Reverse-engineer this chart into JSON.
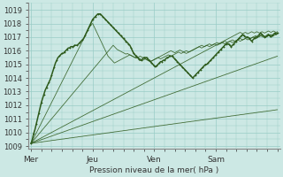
{
  "title": "",
  "xlabel": "Pression niveau de la mer( hPa )",
  "ylabel": "",
  "bg_color": "#cce8e4",
  "plot_bg_color": "#cce8e4",
  "grid_color": "#99ccc6",
  "line_color": "#2d5a1b",
  "yticks": [
    1009,
    1010,
    1011,
    1012,
    1013,
    1014,
    1015,
    1016,
    1017,
    1018,
    1019
  ],
  "xtick_labels": [
    "Mer",
    "Jeu",
    "Ven",
    "Sam"
  ],
  "xtick_positions": [
    0,
    48,
    96,
    144
  ],
  "xlim": [
    -2,
    194
  ],
  "ylim": [
    1008.8,
    1019.5
  ],
  "n_points": 193,
  "lines": {
    "main_thick": [
      1009.2,
      1009.5,
      1009.9,
      1010.2,
      1010.6,
      1011.0,
      1011.4,
      1011.8,
      1012.2,
      1012.5,
      1012.8,
      1013.1,
      1013.3,
      1013.5,
      1013.7,
      1013.9,
      1014.2,
      1014.5,
      1014.8,
      1015.1,
      1015.3,
      1015.5,
      1015.6,
      1015.7,
      1015.8,
      1015.8,
      1015.9,
      1016.0,
      1016.1,
      1016.2,
      1016.2,
      1016.3,
      1016.3,
      1016.3,
      1016.4,
      1016.4,
      1016.4,
      1016.5,
      1016.6,
      1016.7,
      1016.8,
      1016.9,
      1017.1,
      1017.3,
      1017.5,
      1017.7,
      1017.9,
      1018.1,
      1018.3,
      1018.4,
      1018.5,
      1018.6,
      1018.7,
      1018.7,
      1018.7,
      1018.6,
      1018.5,
      1018.4,
      1018.3,
      1018.2,
      1018.1,
      1018.0,
      1017.9,
      1017.8,
      1017.7,
      1017.6,
      1017.5,
      1017.4,
      1017.3,
      1017.2,
      1017.1,
      1017.0,
      1016.9,
      1016.8,
      1016.7,
      1016.6,
      1016.5,
      1016.4,
      1016.2,
      1016.0,
      1015.8,
      1015.7,
      1015.6,
      1015.5,
      1015.4,
      1015.3,
      1015.3,
      1015.4,
      1015.5,
      1015.5,
      1015.5,
      1015.4,
      1015.3,
      1015.2,
      1015.1,
      1015.0,
      1014.9,
      1014.8,
      1014.9,
      1015.0,
      1015.1,
      1015.2,
      1015.2,
      1015.3,
      1015.3,
      1015.4,
      1015.5,
      1015.5,
      1015.6,
      1015.6,
      1015.6,
      1015.5,
      1015.4,
      1015.3,
      1015.2,
      1015.1,
      1015.0,
      1014.9,
      1014.8,
      1014.7,
      1014.6,
      1014.5,
      1014.4,
      1014.3,
      1014.2,
      1014.1,
      1014.0,
      1014.1,
      1014.2,
      1014.3,
      1014.4,
      1014.5,
      1014.6,
      1014.7,
      1014.8,
      1014.9,
      1015.0,
      1015.0,
      1015.1,
      1015.2,
      1015.3,
      1015.4,
      1015.5,
      1015.6,
      1015.7,
      1015.8,
      1015.9,
      1016.0,
      1016.1,
      1016.2,
      1016.3,
      1016.4,
      1016.5,
      1016.5,
      1016.5,
      1016.4,
      1016.3,
      1016.4,
      1016.5,
      1016.6,
      1016.7,
      1016.8,
      1016.9,
      1017.0,
      1017.1,
      1017.2,
      1017.1,
      1017.0,
      1017.0,
      1017.0,
      1016.9,
      1016.8,
      1016.7,
      1016.8,
      1016.9,
      1017.0,
      1017.0,
      1017.1,
      1017.2,
      1017.3,
      1017.2,
      1017.1,
      1017.0,
      1017.0,
      1017.1,
      1017.2,
      1017.1,
      1017.0,
      1017.1,
      1017.2,
      1017.3,
      1017.2,
      1017.3
    ],
    "fan_lines": [
      [
        1009.2,
        1009.38,
        1009.57,
        1009.76,
        1009.95,
        1010.13,
        1010.32,
        1010.51,
        1010.7,
        1010.88,
        1011.07,
        1011.26,
        1011.45,
        1011.63,
        1011.82,
        1012.01,
        1012.2,
        1012.38,
        1012.57,
        1012.76,
        1012.95,
        1013.13,
        1013.32,
        1013.51,
        1013.7,
        1013.88,
        1014.07,
        1014.26,
        1014.45,
        1014.63,
        1014.82,
        1015.01,
        1015.2,
        1015.38,
        1015.57,
        1015.76,
        1015.95,
        1016.13,
        1016.32,
        1016.51,
        1016.7,
        1016.88,
        1017.07,
        1017.26,
        1017.45,
        1017.63,
        1017.82,
        1017.95,
        1018.0,
        1017.8,
        1017.6,
        1017.4,
        1017.2,
        1017.0,
        1016.8,
        1016.6,
        1016.4,
        1016.2,
        1016.0,
        1015.8,
        1015.6,
        1015.5,
        1015.4,
        1015.3,
        1015.2,
        1015.1,
        1015.15,
        1015.2,
        1015.25,
        1015.3,
        1015.35,
        1015.4,
        1015.45,
        1015.5,
        1015.55,
        1015.6,
        1015.65,
        1015.7,
        1015.65,
        1015.6,
        1015.55,
        1015.5,
        1015.45,
        1015.5,
        1015.55,
        1015.6,
        1015.55,
        1015.5,
        1015.45,
        1015.4,
        1015.35,
        1015.3,
        1015.25,
        1015.2,
        1015.25,
        1015.3,
        1015.35,
        1015.4,
        1015.45,
        1015.5,
        1015.55,
        1015.6,
        1015.65,
        1015.7,
        1015.75,
        1015.8,
        1015.85,
        1015.9,
        1015.95,
        1016.0,
        1015.95,
        1015.9,
        1015.85,
        1015.9,
        1015.95,
        1016.0,
        1016.05,
        1016.0,
        1015.95,
        1015.9,
        1015.85,
        1015.8,
        1015.85,
        1015.9,
        1015.95,
        1016.0,
        1016.05,
        1016.1,
        1016.15,
        1016.2,
        1016.25,
        1016.3,
        1016.35,
        1016.4,
        1016.35,
        1016.3,
        1016.35,
        1016.4,
        1016.45,
        1016.5,
        1016.45,
        1016.4,
        1016.45,
        1016.5,
        1016.55,
        1016.6,
        1016.55,
        1016.5,
        1016.55,
        1016.6,
        1016.65,
        1016.7,
        1016.65,
        1016.6,
        1016.65,
        1016.7,
        1016.75,
        1016.8,
        1016.75,
        1016.7,
        1016.75,
        1016.8,
        1016.85,
        1016.9,
        1016.85,
        1016.8,
        1016.85,
        1016.9,
        1016.95,
        1017.0,
        1016.95,
        1016.9,
        1016.95,
        1017.0,
        1017.05,
        1017.1,
        1017.05,
        1017.0,
        1017.05,
        1017.1,
        1017.15,
        1017.1,
        1017.05,
        1017.0,
        1017.05,
        1017.1,
        1017.15,
        1017.2,
        1017.15,
        1017.1,
        1017.15,
        1017.2,
        1017.25
      ],
      [
        1009.2,
        1009.31,
        1009.43,
        1009.54,
        1009.65,
        1009.76,
        1009.88,
        1009.99,
        1010.1,
        1010.21,
        1010.33,
        1010.44,
        1010.55,
        1010.66,
        1010.78,
        1010.89,
        1011.0,
        1011.11,
        1011.23,
        1011.34,
        1011.45,
        1011.56,
        1011.68,
        1011.79,
        1011.9,
        1012.01,
        1012.13,
        1012.24,
        1012.35,
        1012.46,
        1012.58,
        1012.69,
        1012.8,
        1012.91,
        1013.03,
        1013.14,
        1013.25,
        1013.36,
        1013.48,
        1013.59,
        1013.7,
        1013.81,
        1013.93,
        1014.04,
        1014.15,
        1014.26,
        1014.38,
        1014.49,
        1014.6,
        1014.71,
        1014.83,
        1014.94,
        1015.05,
        1015.16,
        1015.28,
        1015.39,
        1015.5,
        1015.61,
        1015.73,
        1015.84,
        1015.95,
        1016.06,
        1016.18,
        1016.29,
        1016.4,
        1016.3,
        1016.2,
        1016.1,
        1016.05,
        1016.0,
        1015.95,
        1015.9,
        1015.85,
        1015.8,
        1015.75,
        1015.8,
        1015.75,
        1015.7,
        1015.65,
        1015.6,
        1015.55,
        1015.5,
        1015.55,
        1015.5,
        1015.45,
        1015.4,
        1015.35,
        1015.3,
        1015.35,
        1015.4,
        1015.35,
        1015.3,
        1015.25,
        1015.2,
        1015.25,
        1015.3,
        1015.35,
        1015.4,
        1015.45,
        1015.5,
        1015.45,
        1015.4,
        1015.45,
        1015.5,
        1015.55,
        1015.6,
        1015.65,
        1015.7,
        1015.65,
        1015.6,
        1015.65,
        1015.7,
        1015.75,
        1015.8,
        1015.85,
        1015.9,
        1015.85,
        1015.8,
        1015.85,
        1015.9,
        1015.95,
        1016.0,
        1015.95,
        1015.9,
        1015.95,
        1016.0,
        1016.05,
        1016.1,
        1016.15,
        1016.2,
        1016.25,
        1016.3,
        1016.25,
        1016.2,
        1016.25,
        1016.3,
        1016.35,
        1016.4,
        1016.35,
        1016.3,
        1016.35,
        1016.4,
        1016.45,
        1016.5,
        1016.45,
        1016.4,
        1016.45,
        1016.5,
        1016.55,
        1016.6,
        1016.55,
        1016.5,
        1016.55,
        1016.6,
        1016.65,
        1016.7,
        1016.65,
        1016.6,
        1016.65,
        1016.7,
        1016.75,
        1016.8,
        1016.75,
        1016.7,
        1016.75,
        1016.8,
        1016.85,
        1016.9,
        1016.85,
        1016.8,
        1016.85,
        1016.9,
        1016.95,
        1017.0,
        1016.95,
        1016.9,
        1016.95,
        1017.0,
        1017.05,
        1017.1,
        1017.05,
        1017.0,
        1017.05,
        1017.1,
        1017.15,
        1017.2,
        1017.15,
        1017.1,
        1017.15,
        1017.2,
        1017.25,
        1017.2,
        1017.25
      ],
      [
        1009.2,
        1009.25,
        1009.3,
        1009.35,
        1009.4,
        1009.45,
        1009.5,
        1009.55,
        1009.6,
        1009.65,
        1009.7,
        1009.75,
        1009.8,
        1009.85,
        1009.9,
        1009.95,
        1010.0,
        1010.05,
        1010.1,
        1010.15,
        1010.2,
        1010.25,
        1010.3,
        1010.35,
        1010.4,
        1010.45,
        1010.5,
        1010.55,
        1010.6,
        1010.65,
        1010.7,
        1010.75,
        1010.8,
        1010.85,
        1010.9,
        1010.95,
        1011.0,
        1011.05,
        1011.1,
        1011.15,
        1011.2,
        1011.25,
        1011.3,
        1011.35,
        1011.4,
        1011.45,
        1011.5,
        1011.55,
        1011.6,
        1011.65,
        1011.7,
        1011.75,
        1011.8,
        1011.85,
        1011.9,
        1011.95,
        1012.0,
        1012.05,
        1012.1,
        1012.15,
        1012.2,
        1012.25,
        1012.3,
        1012.35,
        1012.4,
        1012.45,
        1012.5,
        1012.55,
        1012.6,
        1012.65,
        1012.7,
        1012.75,
        1012.8,
        1012.85,
        1012.9,
        1012.95,
        1013.0,
        1013.05,
        1013.1,
        1013.15,
        1013.2,
        1013.25,
        1013.3,
        1013.35,
        1013.4,
        1013.45,
        1013.5,
        1013.55,
        1013.6,
        1013.65,
        1013.7,
        1013.75,
        1013.8,
        1013.85,
        1013.9,
        1013.95,
        1014.0,
        1014.05,
        1014.1,
        1014.15,
        1014.2,
        1014.25,
        1014.3,
        1014.35,
        1014.4,
        1014.45,
        1014.5,
        1014.55,
        1014.6,
        1014.65,
        1014.7,
        1014.75,
        1014.8,
        1014.85,
        1014.9,
        1014.95,
        1015.0,
        1015.05,
        1015.1,
        1015.15,
        1015.2,
        1015.25,
        1015.3,
        1015.35,
        1015.4,
        1015.45,
        1015.5,
        1015.55,
        1015.6,
        1015.65,
        1015.7,
        1015.75,
        1015.8,
        1015.85,
        1015.9,
        1015.95,
        1016.0,
        1016.05,
        1016.1,
        1016.15,
        1016.2,
        1016.25,
        1016.3,
        1016.35,
        1016.4,
        1016.45,
        1016.5,
        1016.55,
        1016.6,
        1016.65,
        1016.7,
        1016.75,
        1016.8,
        1016.85,
        1016.9,
        1016.95,
        1017.0,
        1017.05,
        1017.1,
        1017.15,
        1017.2,
        1017.25,
        1017.3,
        1017.35,
        1017.3,
        1017.25,
        1017.3,
        1017.35,
        1017.3,
        1017.25,
        1017.3,
        1017.35,
        1017.4,
        1017.35,
        1017.3,
        1017.35,
        1017.4,
        1017.35,
        1017.3,
        1017.35,
        1017.4,
        1017.35,
        1017.3,
        1017.35,
        1017.4,
        1017.45,
        1017.4,
        1017.35,
        1017.4,
        1017.45,
        1017.4,
        1017.35,
        1017.4
      ],
      [
        1009.2,
        1009.23,
        1009.27,
        1009.3,
        1009.33,
        1009.37,
        1009.4,
        1009.43,
        1009.47,
        1009.5,
        1009.53,
        1009.57,
        1009.6,
        1009.63,
        1009.67,
        1009.7,
        1009.73,
        1009.77,
        1009.8,
        1009.83,
        1009.87,
        1009.9,
        1009.93,
        1009.97,
        1010.0,
        1010.03,
        1010.07,
        1010.1,
        1010.13,
        1010.17,
        1010.2,
        1010.23,
        1010.27,
        1010.3,
        1010.33,
        1010.37,
        1010.4,
        1010.43,
        1010.47,
        1010.5,
        1010.53,
        1010.57,
        1010.6,
        1010.63,
        1010.67,
        1010.7,
        1010.73,
        1010.77,
        1010.8,
        1010.83,
        1010.87,
        1010.9,
        1010.93,
        1010.97,
        1011.0,
        1011.03,
        1011.07,
        1011.1,
        1011.13,
        1011.17,
        1011.2,
        1011.23,
        1011.27,
        1011.3,
        1011.33,
        1011.37,
        1011.4,
        1011.43,
        1011.47,
        1011.5,
        1011.53,
        1011.57,
        1011.6,
        1011.63,
        1011.67,
        1011.7,
        1011.73,
        1011.77,
        1011.8,
        1011.83,
        1011.87,
        1011.9,
        1011.93,
        1011.97,
        1012.0,
        1012.03,
        1012.07,
        1012.1,
        1012.13,
        1012.17,
        1012.2,
        1012.23,
        1012.27,
        1012.3,
        1012.33,
        1012.37,
        1012.4,
        1012.43,
        1012.47,
        1012.5,
        1012.53,
        1012.57,
        1012.6,
        1012.63,
        1012.67,
        1012.7,
        1012.73,
        1012.77,
        1012.8,
        1012.83,
        1012.87,
        1012.9,
        1012.93,
        1012.97,
        1013.0,
        1013.03,
        1013.07,
        1013.1,
        1013.13,
        1013.17,
        1013.2,
        1013.23,
        1013.27,
        1013.3,
        1013.33,
        1013.37,
        1013.4,
        1013.43,
        1013.47,
        1013.5,
        1013.53,
        1013.57,
        1013.6,
        1013.63,
        1013.67,
        1013.7,
        1013.73,
        1013.77,
        1013.8,
        1013.83,
        1013.87,
        1013.9,
        1013.93,
        1013.97,
        1014.0,
        1014.03,
        1014.07,
        1014.1,
        1014.13,
        1014.17,
        1014.2,
        1014.23,
        1014.27,
        1014.3,
        1014.33,
        1014.37,
        1014.4,
        1014.43,
        1014.47,
        1014.5,
        1014.53,
        1014.57,
        1014.6,
        1014.63,
        1014.67,
        1014.7,
        1014.73,
        1014.77,
        1014.8,
        1014.83,
        1014.87,
        1014.9,
        1014.93,
        1014.97,
        1015.0,
        1015.03,
        1015.07,
        1015.1,
        1015.13,
        1015.17,
        1015.2,
        1015.23,
        1015.27,
        1015.3,
        1015.33,
        1015.37,
        1015.4,
        1015.43,
        1015.47,
        1015.5,
        1015.53,
        1015.57,
        1015.6
      ],
      [
        1009.2,
        1009.21,
        1009.22,
        1009.24,
        1009.25,
        1009.26,
        1009.28,
        1009.29,
        1009.3,
        1009.31,
        1009.33,
        1009.34,
        1009.35,
        1009.37,
        1009.38,
        1009.39,
        1009.41,
        1009.42,
        1009.43,
        1009.44,
        1009.46,
        1009.47,
        1009.48,
        1009.5,
        1009.51,
        1009.52,
        1009.53,
        1009.55,
        1009.56,
        1009.57,
        1009.59,
        1009.6,
        1009.61,
        1009.62,
        1009.64,
        1009.65,
        1009.66,
        1009.68,
        1009.69,
        1009.7,
        1009.71,
        1009.73,
        1009.74,
        1009.75,
        1009.77,
        1009.78,
        1009.79,
        1009.8,
        1009.82,
        1009.83,
        1009.84,
        1009.86,
        1009.87,
        1009.88,
        1009.89,
        1009.91,
        1009.92,
        1009.93,
        1009.95,
        1009.96,
        1009.97,
        1009.98,
        1010.0,
        1010.01,
        1010.02,
        1010.04,
        1010.05,
        1010.06,
        1010.07,
        1010.09,
        1010.1,
        1010.11,
        1010.13,
        1010.14,
        1010.15,
        1010.16,
        1010.18,
        1010.19,
        1010.2,
        1010.22,
        1010.23,
        1010.24,
        1010.25,
        1010.27,
        1010.28,
        1010.29,
        1010.31,
        1010.32,
        1010.33,
        1010.34,
        1010.36,
        1010.37,
        1010.38,
        1010.4,
        1010.41,
        1010.42,
        1010.43,
        1010.45,
        1010.46,
        1010.47,
        1010.49,
        1010.5,
        1010.51,
        1010.52,
        1010.54,
        1010.55,
        1010.56,
        1010.58,
        1010.59,
        1010.6,
        1010.61,
        1010.63,
        1010.64,
        1010.65,
        1010.67,
        1010.68,
        1010.69,
        1010.7,
        1010.72,
        1010.73,
        1010.74,
        1010.76,
        1010.77,
        1010.78,
        1010.79,
        1010.81,
        1010.82,
        1010.83,
        1010.85,
        1010.86,
        1010.87,
        1010.88,
        1010.9,
        1010.91,
        1010.92,
        1010.94,
        1010.95,
        1010.96,
        1010.97,
        1010.99,
        1011.0,
        1011.01,
        1011.03,
        1011.04,
        1011.05,
        1011.06,
        1011.08,
        1011.09,
        1011.1,
        1011.12,
        1011.13,
        1011.14,
        1011.15,
        1011.17,
        1011.18,
        1011.19,
        1011.21,
        1011.22,
        1011.23,
        1011.24,
        1011.26,
        1011.27,
        1011.28,
        1011.3,
        1011.31,
        1011.32,
        1011.33,
        1011.35,
        1011.36,
        1011.37,
        1011.39,
        1011.4,
        1011.41,
        1011.42,
        1011.44,
        1011.45,
        1011.46,
        1011.48,
        1011.49,
        1011.5,
        1011.51,
        1011.53,
        1011.54,
        1011.55,
        1011.57,
        1011.58,
        1011.59,
        1011.6,
        1011.62,
        1011.63,
        1011.64,
        1011.66,
        1011.67
      ]
    ]
  }
}
